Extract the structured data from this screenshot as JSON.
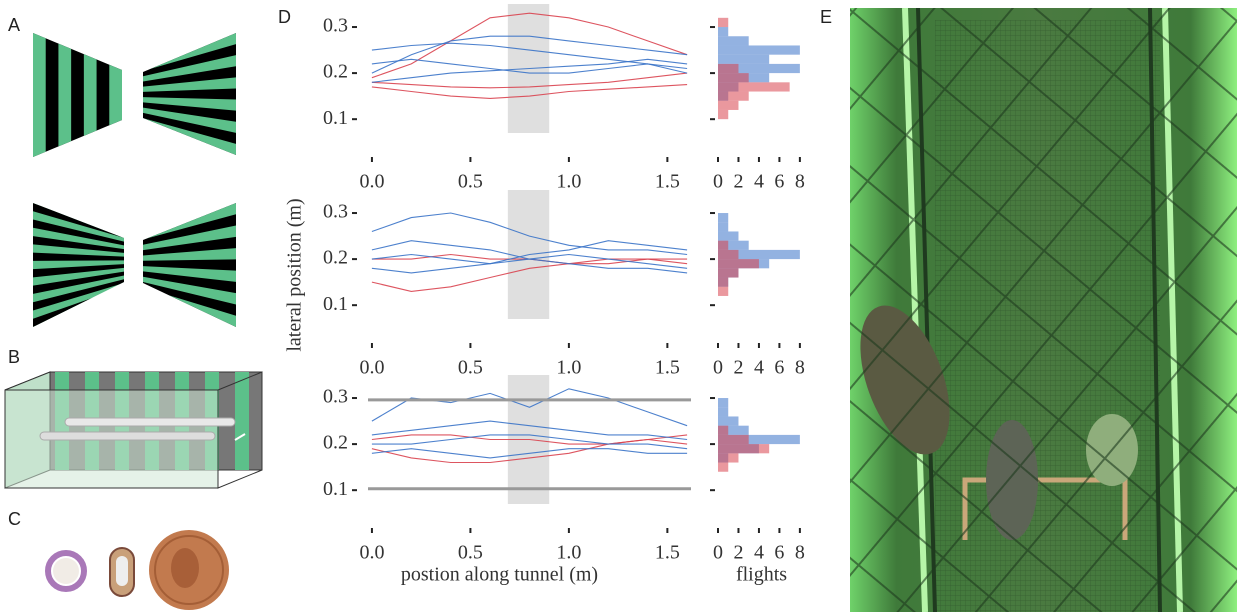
{
  "panels": {
    "a": "A",
    "b": "B",
    "c": "C",
    "d": "D",
    "e": "E"
  },
  "chart_data": [
    {
      "type": "line",
      "x": [
        0,
        0.2,
        0.4,
        0.6,
        0.8,
        1.0,
        1.2,
        1.4,
        1.6
      ],
      "xlim": [
        -0.02,
        1.62
      ],
      "ylim": [
        0.07,
        0.35
      ],
      "xticks": [
        {
          "value": 0,
          "label": "0.0"
        },
        0.5,
        {
          "value": 1,
          "label": "1.0"
        },
        1.5
      ],
      "yticks": [
        0.1,
        0.2,
        0.3
      ],
      "shade": [
        0.69,
        0.9
      ],
      "series": [
        {
          "color": "#d9434f",
          "values": [
            0.18,
            0.175,
            0.17,
            0.168,
            0.17,
            0.175,
            0.18,
            0.19,
            0.2
          ]
        },
        {
          "color": "#d9434f",
          "values": [
            0.17,
            0.16,
            0.15,
            0.145,
            0.15,
            0.16,
            0.165,
            0.17,
            0.175
          ]
        },
        {
          "color": "#d9434f",
          "values": [
            0.19,
            0.22,
            0.27,
            0.32,
            0.33,
            0.32,
            0.3,
            0.27,
            0.24
          ]
        },
        {
          "color": "#3a73c8",
          "values": [
            0.2,
            0.24,
            0.27,
            0.28,
            0.28,
            0.27,
            0.26,
            0.25,
            0.24
          ]
        },
        {
          "color": "#3a73c8",
          "values": [
            0.22,
            0.23,
            0.22,
            0.21,
            0.2,
            0.2,
            0.21,
            0.22,
            0.21
          ]
        },
        {
          "color": "#3a73c8",
          "values": [
            0.25,
            0.26,
            0.265,
            0.26,
            0.25,
            0.24,
            0.23,
            0.22,
            0.2
          ]
        },
        {
          "color": "#3a73c8",
          "values": [
            0.18,
            0.19,
            0.2,
            0.205,
            0.21,
            0.215,
            0.22,
            0.23,
            0.22
          ]
        }
      ]
    },
    {
      "type": "line",
      "x": [
        0,
        0.2,
        0.4,
        0.6,
        0.8,
        1.0,
        1.2,
        1.4,
        1.6
      ],
      "xlim": [
        -0.02,
        1.62
      ],
      "ylim": [
        0.07,
        0.35
      ],
      "xticks": [
        {
          "value": 0,
          "label": "0.0"
        },
        0.5,
        {
          "value": 1,
          "label": "1.0"
        },
        1.5
      ],
      "yticks": [
        0.1,
        0.2,
        0.3
      ],
      "shade": [
        0.69,
        0.9
      ],
      "ylabel": "lateral position (m)",
      "series": [
        {
          "color": "#d9434f",
          "values": [
            0.15,
            0.13,
            0.14,
            0.16,
            0.18,
            0.19,
            0.2,
            0.2,
            0.19
          ]
        },
        {
          "color": "#d9434f",
          "values": [
            0.2,
            0.2,
            0.21,
            0.2,
            0.2,
            0.19,
            0.19,
            0.2,
            0.2
          ]
        },
        {
          "color": "#3a73c8",
          "values": [
            0.26,
            0.29,
            0.3,
            0.28,
            0.25,
            0.23,
            0.22,
            0.22,
            0.21
          ]
        },
        {
          "color": "#3a73c8",
          "values": [
            0.2,
            0.21,
            0.2,
            0.19,
            0.2,
            0.21,
            0.2,
            0.19,
            0.18
          ]
        },
        {
          "color": "#3a73c8",
          "values": [
            0.22,
            0.24,
            0.23,
            0.22,
            0.2,
            0.19,
            0.18,
            0.18,
            0.17
          ]
        },
        {
          "color": "#3a73c8",
          "values": [
            0.18,
            0.17,
            0.18,
            0.19,
            0.21,
            0.22,
            0.24,
            0.23,
            0.22
          ]
        }
      ]
    },
    {
      "type": "line",
      "x": [
        0,
        0.2,
        0.4,
        0.6,
        0.8,
        1.0,
        1.2,
        1.4,
        1.6
      ],
      "xlim": [
        -0.02,
        1.62
      ],
      "ylim": [
        0.07,
        0.35
      ],
      "xticks": [
        {
          "value": 0,
          "label": "0.0"
        },
        0.5,
        {
          "value": 1,
          "label": "1.0"
        },
        1.5
      ],
      "yticks": [
        0.1,
        0.2,
        0.3
      ],
      "shade": [
        0.69,
        0.9
      ],
      "hlines": [
        0.296,
        0.103
      ],
      "xlabel": "postion along tunnel (m)",
      "series": [
        {
          "color": "#d9434f",
          "values": [
            0.19,
            0.17,
            0.16,
            0.16,
            0.17,
            0.18,
            0.2,
            0.21,
            0.2
          ]
        },
        {
          "color": "#d9434f",
          "values": [
            0.21,
            0.22,
            0.22,
            0.21,
            0.21,
            0.2,
            0.2,
            0.21,
            0.22
          ]
        },
        {
          "color": "#3a73c8",
          "values": [
            0.25,
            0.3,
            0.29,
            0.31,
            0.28,
            0.32,
            0.3,
            0.27,
            0.24
          ]
        },
        {
          "color": "#3a73c8",
          "values": [
            0.2,
            0.2,
            0.21,
            0.22,
            0.22,
            0.21,
            0.2,
            0.2,
            0.19
          ]
        },
        {
          "color": "#3a73c8",
          "values": [
            0.22,
            0.23,
            0.24,
            0.25,
            0.24,
            0.23,
            0.22,
            0.22,
            0.21
          ]
        },
        {
          "color": "#3a73c8",
          "values": [
            0.18,
            0.19,
            0.18,
            0.17,
            0.18,
            0.19,
            0.19,
            0.18,
            0.18
          ]
        }
      ]
    },
    {
      "type": "histogram",
      "orientation": "horizontal",
      "bins": [
        0.1,
        0.12,
        0.14,
        0.16,
        0.18,
        0.2,
        0.22,
        0.24,
        0.26,
        0.28,
        0.3,
        0.32
      ],
      "xlim": [
        0,
        8.5
      ],
      "ylim": [
        0.07,
        0.35
      ],
      "xticks": [
        0,
        2,
        4,
        6,
        8
      ],
      "yticks": [
        0.1,
        0.2,
        0.3
      ],
      "series": [
        {
          "color": "#3a73c8",
          "values": [
            0,
            0,
            1,
            2,
            5,
            8,
            5,
            8,
            3,
            1,
            0
          ]
        },
        {
          "color": "#d9434f",
          "values": [
            1,
            2,
            3,
            7,
            3,
            2,
            0,
            0,
            0,
            0,
            1
          ]
        }
      ]
    },
    {
      "type": "histogram",
      "orientation": "horizontal",
      "bins": [
        0.1,
        0.12,
        0.14,
        0.16,
        0.18,
        0.2,
        0.22,
        0.24,
        0.26,
        0.28,
        0.3,
        0.32
      ],
      "xlim": [
        0,
        8.5
      ],
      "ylim": [
        0.07,
        0.35
      ],
      "xticks": [
        0,
        2,
        4,
        6,
        8
      ],
      "yticks": [
        0.1,
        0.2,
        0.3
      ],
      "series": [
        {
          "color": "#3a73c8",
          "values": [
            0,
            0,
            1,
            2,
            5,
            8,
            3,
            2,
            1,
            1,
            0
          ]
        },
        {
          "color": "#d9434f",
          "values": [
            0,
            1,
            1,
            2,
            4,
            2,
            1,
            0,
            0,
            0,
            0
          ]
        }
      ]
    },
    {
      "type": "histogram",
      "orientation": "horizontal",
      "bins": [
        0.1,
        0.12,
        0.14,
        0.16,
        0.18,
        0.2,
        0.22,
        0.24,
        0.26,
        0.28,
        0.3,
        0.32
      ],
      "xlim": [
        0,
        8.5
      ],
      "ylim": [
        0.07,
        0.35
      ],
      "xticks": [
        0,
        2,
        4,
        6,
        8
      ],
      "yticks": [
        0.1,
        0.2,
        0.3
      ],
      "xlabel": "flights",
      "series": [
        {
          "color": "#3a73c8",
          "values": [
            0,
            0,
            0,
            1,
            4,
            8,
            3,
            2,
            1,
            1,
            0
          ]
        },
        {
          "color": "#d9434f",
          "values": [
            0,
            0,
            1,
            2,
            5,
            3,
            1,
            0,
            0,
            0,
            0
          ]
        }
      ]
    }
  ]
}
